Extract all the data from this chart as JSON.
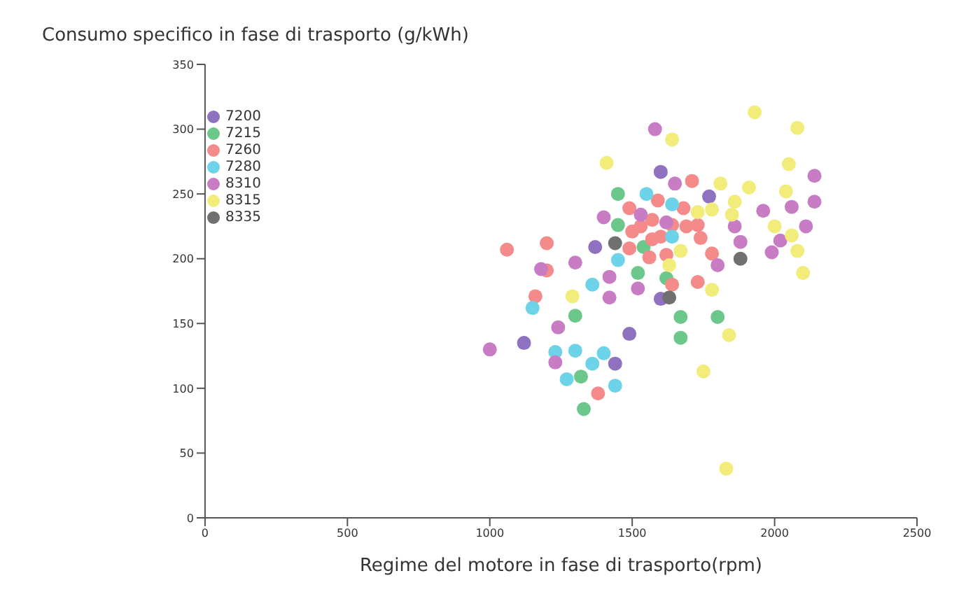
{
  "chart_data": {
    "type": "scatter",
    "ylabel": "Consumo specifico in fase di trasporto (g/kWh)",
    "xlabel": "Regime del motore in fase di trasporto(rpm)",
    "xlim": [
      0,
      2500
    ],
    "xticks": [
      0,
      500,
      1000,
      1500,
      2000,
      2500
    ],
    "ylim": [
      0,
      350
    ],
    "yticks": [
      0,
      50,
      100,
      150,
      200,
      250,
      300,
      350
    ],
    "grid": false,
    "legend": "top left",
    "marker": "circle",
    "series": [
      {
        "name": "7200",
        "color": "#8e72c0",
        "x": [
          1600,
          1370,
          1600,
          1490,
          1120,
          1440,
          1770
        ],
        "values": [
          267,
          209,
          169,
          142,
          135,
          119,
          248
        ]
      },
      {
        "name": "7215",
        "color": "#6cc88a",
        "x": [
          1450,
          1450,
          1540,
          1520,
          1620,
          1300,
          1320,
          1330,
          1670,
          1800,
          1670
        ],
        "values": [
          250,
          226,
          209,
          189,
          185,
          156,
          109,
          84,
          155,
          155,
          139
        ]
      },
      {
        "name": "7260",
        "color": "#f58a8a",
        "x": [
          1590,
          1490,
          1570,
          1530,
          1500,
          1600,
          1570,
          1640,
          1060,
          1200,
          1490,
          1560,
          1620,
          1640,
          1200,
          1160,
          1380,
          1710,
          1680,
          1690,
          1730,
          1740,
          1780,
          1730
        ],
        "values": [
          245,
          239,
          230,
          225,
          221,
          217,
          215,
          226,
          207,
          212,
          208,
          201,
          203,
          180,
          191,
          171,
          96,
          260,
          239,
          225,
          226,
          216,
          204,
          182
        ]
      },
      {
        "name": "7280",
        "color": "#6dd3e8",
        "x": [
          1550,
          1640,
          1640,
          1450,
          1360,
          1150,
          1230,
          1300,
          1400,
          1360,
          1270,
          1440
        ],
        "values": [
          250,
          242,
          217,
          199,
          180,
          162,
          128,
          129,
          127,
          119,
          107,
          102
        ]
      },
      {
        "name": "8310",
        "color": "#c77cc4",
        "x": [
          1580,
          1650,
          1400,
          1530,
          1620,
          1300,
          1180,
          1420,
          1520,
          1420,
          1240,
          1000,
          1230,
          2140,
          1960,
          2060,
          2140,
          1860,
          2110,
          1880,
          2020,
          1990,
          1800
        ],
        "values": [
          300,
          258,
          232,
          234,
          228,
          197,
          192,
          186,
          177,
          170,
          147,
          130,
          120,
          264,
          237,
          240,
          244,
          225,
          225,
          213,
          214,
          205,
          195
        ]
      },
      {
        "name": "8315",
        "color": "#f2ec7a",
        "x": [
          1640,
          1410,
          1630,
          1290,
          1930,
          2080,
          2050,
          1810,
          1910,
          1730,
          1780,
          1860,
          1850,
          2040,
          2000,
          2060,
          1670,
          2080,
          2100,
          1780,
          1840,
          1750,
          1830
        ],
        "values": [
          292,
          274,
          195,
          171,
          313,
          301,
          273,
          258,
          255,
          236,
          238,
          244,
          234,
          252,
          225,
          218,
          206,
          206,
          189,
          176,
          141,
          113,
          38
        ]
      },
      {
        "name": "8335",
        "color": "#707070",
        "x": [
          1440,
          1630,
          1880
        ],
        "values": [
          212,
          170,
          200
        ]
      }
    ]
  }
}
